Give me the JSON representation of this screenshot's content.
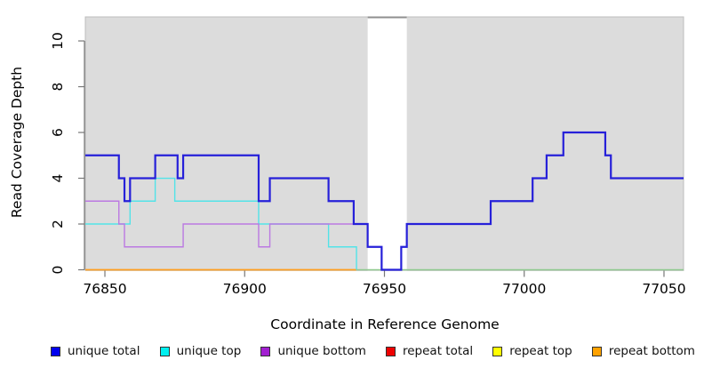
{
  "chart_data": {
    "type": "line",
    "subtype": "step-coverage",
    "title": "",
    "xlabel": "Coordinate in Reference Genome",
    "ylabel": "Read Coverage Depth",
    "xlim": [
      76843,
      77057
    ],
    "ylim": [
      0,
      11.05
    ],
    "xticks": [
      76850,
      76900,
      76950,
      77000,
      77050
    ],
    "yticks": [
      0,
      2,
      4,
      6,
      8,
      10
    ],
    "grid": "off",
    "legend_position": "bottom",
    "background_band": {
      "from": 76843,
      "to": 77057,
      "color": "#dcdcdc",
      "edge_color": "#bcbcbc"
    },
    "gap_region": {
      "from": 76944,
      "to": 76958,
      "fill": "#ffffff",
      "top_border_color": "#8f8f8f"
    },
    "axis_color": "#777777",
    "tick_label_color": "#000000",
    "series": [
      {
        "name": "repeat bottom",
        "color": "#ff9e1f",
        "width": 1.8,
        "end": 76940,
        "steps": [
          [
            76843,
            0
          ]
        ]
      },
      {
        "name": "zero-baseline-green",
        "color": "#8fc98f",
        "width": 1.4,
        "end": 77057,
        "steps": [
          [
            76940,
            0
          ]
        ]
      },
      {
        "name": "unique top",
        "color": "#52e3e8",
        "width": 1.4,
        "end": 76940,
        "steps": [
          [
            76843,
            2
          ],
          [
            76859,
            3
          ],
          [
            76868,
            4
          ],
          [
            76875,
            3
          ],
          [
            76905,
            2
          ],
          [
            76930,
            1
          ],
          [
            76940,
            0
          ]
        ]
      },
      {
        "name": "unique bottom",
        "color": "#bb79e2",
        "width": 1.4,
        "end": 76949,
        "steps": [
          [
            76843,
            3
          ],
          [
            76855,
            2
          ],
          [
            76857,
            1
          ],
          [
            76878,
            2
          ],
          [
            76905,
            1
          ],
          [
            76909,
            2
          ],
          [
            76944,
            1
          ],
          [
            76949,
            0
          ]
        ]
      },
      {
        "name": "unique total",
        "color": "#2620d9",
        "width": 2.2,
        "end": 77057,
        "steps": [
          [
            76843,
            5
          ],
          [
            76855,
            4
          ],
          [
            76857,
            3
          ],
          [
            76859,
            4
          ],
          [
            76868,
            5
          ],
          [
            76876,
            4
          ],
          [
            76878,
            5
          ],
          [
            76905,
            3
          ],
          [
            76909,
            4
          ],
          [
            76930,
            3
          ],
          [
            76939,
            2
          ],
          [
            76944,
            1
          ],
          [
            76949,
            0
          ],
          [
            76956,
            1
          ],
          [
            76958,
            2
          ],
          [
            76988,
            3
          ],
          [
            77003,
            4
          ],
          [
            77008,
            5
          ],
          [
            77014,
            6
          ],
          [
            77029,
            5
          ],
          [
            77031,
            4
          ]
        ]
      }
    ],
    "legend": [
      {
        "label": "unique total",
        "color": "#0000ee"
      },
      {
        "label": "unique top",
        "color": "#00f0f0"
      },
      {
        "label": "unique bottom",
        "color": "#a21fd1"
      },
      {
        "label": "repeat total",
        "color": "#ee0000"
      },
      {
        "label": "repeat top",
        "color": "#ffff00"
      },
      {
        "label": "repeat bottom",
        "color": "#ffa200"
      }
    ]
  }
}
